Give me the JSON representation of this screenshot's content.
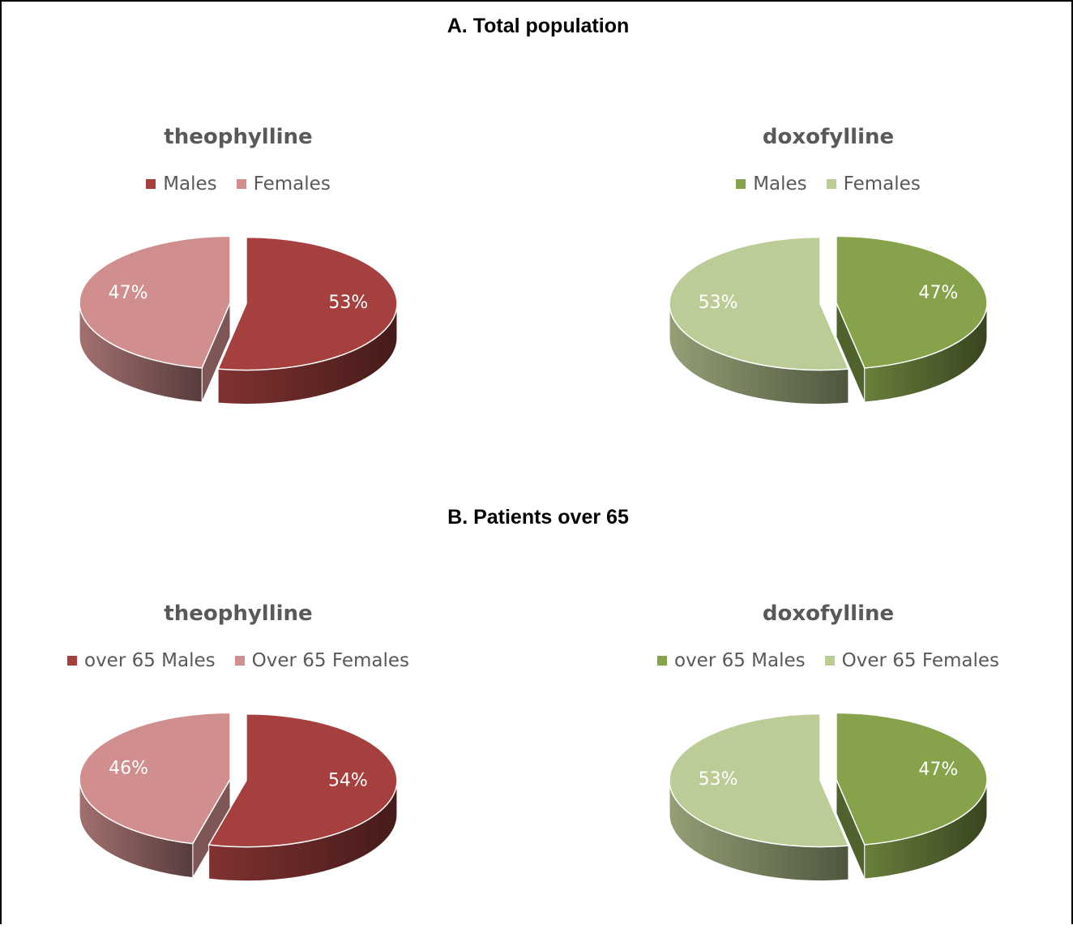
{
  "sections": [
    {
      "title": "A. Total population"
    },
    {
      "title": "B. Patients over 65"
    }
  ],
  "chart_data": [
    {
      "type": "pie",
      "title": "theophylline",
      "labels": [
        "Males",
        "Females"
      ],
      "values": [
        53,
        47
      ],
      "value_labels": [
        "53%",
        "47%"
      ],
      "colors": [
        "#a5403f",
        "#d08f8e"
      ]
    },
    {
      "type": "pie",
      "title": "doxofylline",
      "labels": [
        "Males",
        "Females"
      ],
      "values": [
        47,
        53
      ],
      "value_labels": [
        "47%",
        "53%"
      ],
      "colors": [
        "#86a34b",
        "#bccc96"
      ]
    },
    {
      "type": "pie",
      "title": "theophylline",
      "labels": [
        "over 65 Males",
        "Over 65 Females"
      ],
      "values": [
        54,
        46
      ],
      "value_labels": [
        "54%",
        "46%"
      ],
      "colors": [
        "#a5403f",
        "#d08f8e"
      ]
    },
    {
      "type": "pie",
      "title": "doxofylline",
      "labels": [
        "over 65 Males",
        "Over 65 Females"
      ],
      "values": [
        47,
        53
      ],
      "value_labels": [
        "47%",
        "53%"
      ],
      "colors": [
        "#86a34b",
        "#bccc96"
      ]
    }
  ]
}
